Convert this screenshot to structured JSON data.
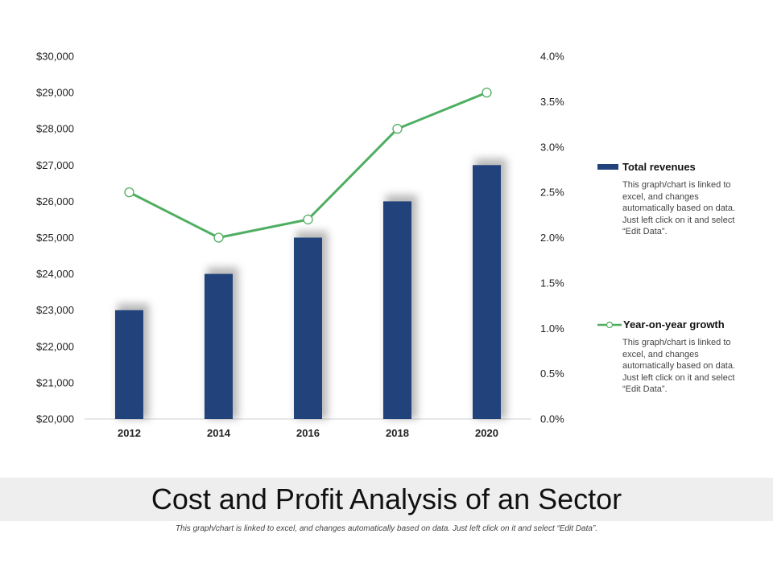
{
  "chart_data": {
    "type": "bar+line",
    "categories": [
      "2012",
      "2014",
      "2016",
      "2018",
      "2020"
    ],
    "series": [
      {
        "name": "Total revenues",
        "type": "bar",
        "axis": "left",
        "values": [
          23000,
          24000,
          25000,
          26000,
          27000
        ],
        "color": "#21427a"
      },
      {
        "name": "Year-on-year growth",
        "type": "line",
        "axis": "right",
        "values": [
          2.5,
          2.0,
          2.2,
          3.2,
          3.6
        ],
        "color": "#4fae61"
      }
    ],
    "y_left": {
      "min": 20000,
      "max": 30000,
      "ticks": [
        "$20,000",
        "$21,000",
        "$22,000",
        "$23,000",
        "$24,000",
        "$25,000",
        "$26,000",
        "$27,000",
        "$28,000",
        "$29,000",
        "$30,000"
      ]
    },
    "y_right": {
      "min": 0,
      "max": 4,
      "ticks": [
        "0.0%",
        "0.5%",
        "1.0%",
        "1.5%",
        "2.0%",
        "2.5%",
        "3.0%",
        "3.5%",
        "4.0%"
      ]
    },
    "grid": false,
    "legend_position": "right"
  },
  "legend": {
    "bar_label": "Total revenues",
    "bar_desc": "This graph/chart is linked to excel, and changes automatically based on data. Just left click on it and select “Edit Data”.",
    "line_label": "Year-on-year growth",
    "line_desc": "This graph/chart is linked to excel, and changes automatically based on data. Just left click on it and select “Edit Data”."
  },
  "title": "Cost and Profit Analysis of an Sector",
  "subtitle": "This graph/chart is linked to excel, and changes automatically based on data. Just left click on it and select “Edit Data”."
}
